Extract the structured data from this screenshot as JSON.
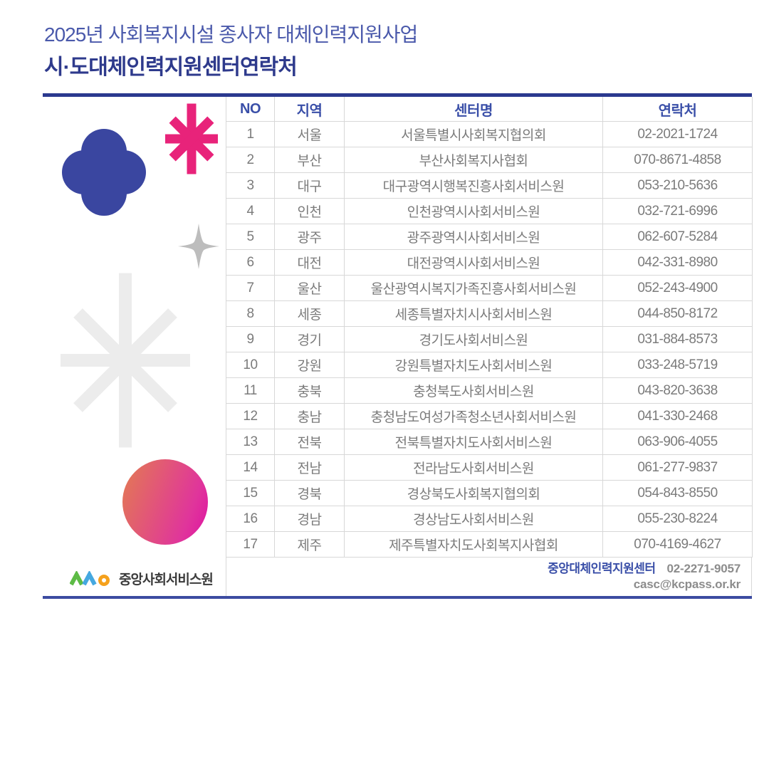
{
  "header": {
    "subtitle": "2025년 사회복지시설 종사자 대체인력지원사업",
    "title": "시·도대체인력지원센터연락처"
  },
  "table": {
    "columns": [
      "NO",
      "지역",
      "센터명",
      "연락처"
    ],
    "rows": [
      {
        "no": "1",
        "region": "서울",
        "center": "서울특별시사회복지협의회",
        "phone": "02-2021-1724"
      },
      {
        "no": "2",
        "region": "부산",
        "center": "부산사회복지사협회",
        "phone": "070-8671-4858"
      },
      {
        "no": "3",
        "region": "대구",
        "center": "대구광역시행복진흥사회서비스원",
        "phone": "053-210-5636"
      },
      {
        "no": "4",
        "region": "인천",
        "center": "인천광역시사회서비스원",
        "phone": "032-721-6996"
      },
      {
        "no": "5",
        "region": "광주",
        "center": "광주광역시사회서비스원",
        "phone": "062-607-5284"
      },
      {
        "no": "6",
        "region": "대전",
        "center": "대전광역시사회서비스원",
        "phone": "042-331-8980"
      },
      {
        "no": "7",
        "region": "울산",
        "center": "울산광역시복지가족진흥사회서비스원",
        "phone": "052-243-4900"
      },
      {
        "no": "8",
        "region": "세종",
        "center": "세종특별자치시사회서비스원",
        "phone": "044-850-8172"
      },
      {
        "no": "9",
        "region": "경기",
        "center": "경기도사회서비스원",
        "phone": "031-884-8573"
      },
      {
        "no": "10",
        "region": "강원",
        "center": "강원특별자치도사회서비스원",
        "phone": "033-248-5719"
      },
      {
        "no": "11",
        "region": "충북",
        "center": "충청북도사회서비스원",
        "phone": "043-820-3638"
      },
      {
        "no": "12",
        "region": "충남",
        "center": "충청남도여성가족청소년사회서비스원",
        "phone": "041-330-2468"
      },
      {
        "no": "13",
        "region": "전북",
        "center": "전북특별자치도사회서비스원",
        "phone": "063-906-4055"
      },
      {
        "no": "14",
        "region": "전남",
        "center": "전라남도사회서비스원",
        "phone": "061-277-9837"
      },
      {
        "no": "15",
        "region": "경북",
        "center": "경상북도사회복지협의회",
        "phone": "054-843-8550"
      },
      {
        "no": "16",
        "region": "경남",
        "center": "경상남도사회서비스원",
        "phone": "055-230-8224"
      },
      {
        "no": "17",
        "region": "제주",
        "center": "제주특별자치도사회복지사협회",
        "phone": "070-4169-4627"
      }
    ]
  },
  "footer": {
    "org_name": "중앙사회서비스원",
    "center_label": "중앙대체인력지원센터",
    "phone": "02-2271-9057",
    "email": "casc@kcpass.or.kr"
  },
  "colors": {
    "title_blue": "#4a59ab",
    "navy": "#2e3a8c",
    "table_header_blue": "#3a4fa8",
    "top_border_navy": "#2b398f",
    "bottom_border_blue": "#3c4ba1",
    "cell_text_gray": "#7b7b7b",
    "divider_gray": "#d8d8d8",
    "deco_pink": "#e8237a",
    "deco_indigo": "#3a46a0",
    "deco_light_gray": "#ececec",
    "deco_sparkle_gray": "#bdbdbd",
    "circle_gradient_start": "#e37459",
    "circle_gradient_end": "#de12a3",
    "logo_green": "#5dbb46",
    "logo_blue": "#45a8e0",
    "logo_orange": "#f5a11d"
  }
}
